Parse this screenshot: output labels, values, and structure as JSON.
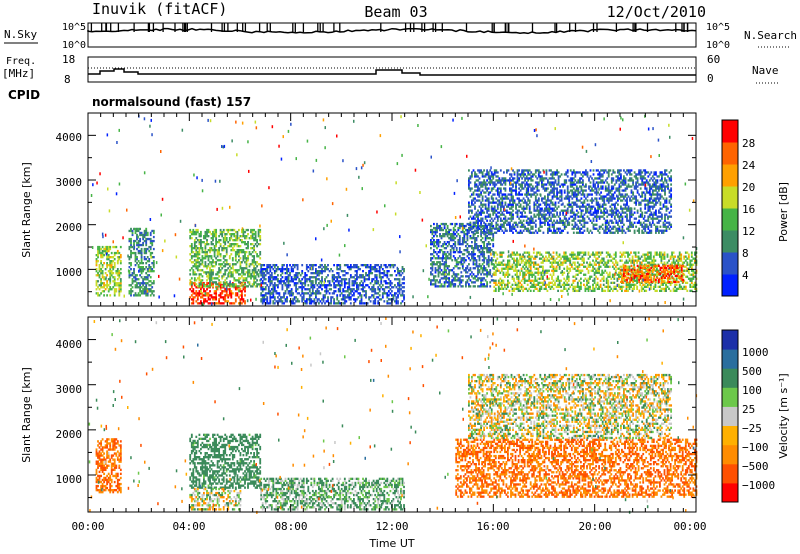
{
  "header": {
    "station": "Inuvik (fitACF)",
    "beam": "Beam 03",
    "date": "12/Oct/2010"
  },
  "nsky_panel": {
    "left_label": "N.Sky",
    "right_label": "N.Search",
    "left_ticks": [
      "10^5",
      "10^0"
    ],
    "right_ticks": [
      "10^5",
      "10^0"
    ]
  },
  "freq_panel": {
    "left_label_1": "Freq.",
    "left_label_2": "[MHz]",
    "right_label": "Nave",
    "left_ticks": [
      "18",
      "8"
    ],
    "right_ticks": [
      "60",
      "0"
    ],
    "cpid_label": "CPID",
    "cpid_value": "normalsound (fast) 157"
  },
  "x_axis": {
    "label": "Time UT",
    "ticks": [
      "00:00",
      "04:00",
      "08:00",
      "12:00",
      "16:00",
      "20:00",
      "00:00"
    ]
  },
  "power_panel": {
    "ylabel": "Slant Range [km]",
    "yticks": [
      "1000",
      "2000",
      "3000",
      "4000"
    ],
    "colorbar_label": "Power [dB]",
    "colorbar_ticks": [
      "4",
      "8",
      "12",
      "16",
      "20",
      "24",
      "28"
    ],
    "colors": [
      "#0020ff",
      "#2a52c8",
      "#3c8c64",
      "#46b446",
      "#c8dc28",
      "#ffa000",
      "#ff6400",
      "#ff0000"
    ]
  },
  "velocity_panel": {
    "ylabel": "Slant Range [km]",
    "yticks": [
      "1000",
      "2000",
      "3000",
      "4000"
    ],
    "colorbar_label": "Velocity [m s⁻¹]",
    "colorbar_ticks": [
      "1000",
      "500",
      "100",
      "25",
      "−25",
      "−100",
      "−500",
      "−1000"
    ],
    "colors": [
      "#1c2fa8",
      "#2a6e9e",
      "#3a8a5a",
      "#6cc84a",
      "#c8c8c8",
      "#ffb000",
      "#ff8c00",
      "#ff5000",
      "#ff0000"
    ]
  },
  "chart_data": {
    "type": "heatmap",
    "x_range": [
      "00:00",
      "24:00"
    ],
    "y_range_km": [
      180,
      4500
    ],
    "power_regions": [
      {
        "t0": 0.3,
        "t1": 1.3,
        "r0": 400,
        "r1": 1500,
        "dB": 18
      },
      {
        "t0": 1.6,
        "t1": 2.6,
        "r0": 400,
        "r1": 1900,
        "dB": 12
      },
      {
        "t0": 4.0,
        "t1": 6.2,
        "r0": 220,
        "r1": 700,
        "dB": 30
      },
      {
        "t0": 4.0,
        "t1": 6.8,
        "r0": 600,
        "r1": 1900,
        "dB": 16
      },
      {
        "t0": 6.8,
        "t1": 12.5,
        "r0": 220,
        "r1": 1100,
        "dB": 8
      },
      {
        "t0": 13.5,
        "t1": 16.0,
        "r0": 600,
        "r1": 2000,
        "dB": 10
      },
      {
        "t0": 16.0,
        "t1": 24.0,
        "r0": 500,
        "r1": 1400,
        "dB": 18
      },
      {
        "t0": 21.0,
        "t1": 23.5,
        "r0": 700,
        "r1": 1100,
        "dB": 28
      },
      {
        "t0": 15.0,
        "t1": 23.0,
        "r0": 1800,
        "r1": 3200,
        "dB": 9
      }
    ],
    "velocity_regions": [
      {
        "t0": 0.3,
        "t1": 1.3,
        "r0": 600,
        "r1": 1800,
        "v": -300
      },
      {
        "t0": 4.0,
        "t1": 6.8,
        "r0": 700,
        "r1": 1900,
        "v": 150
      },
      {
        "t0": 4.0,
        "t1": 6.0,
        "r0": 220,
        "r1": 700,
        "v": 0
      },
      {
        "t0": 6.8,
        "t1": 12.5,
        "r0": 220,
        "r1": 900,
        "v": 80
      },
      {
        "t0": 14.5,
        "t1": 24.0,
        "r0": 500,
        "r1": 1800,
        "v": -300
      },
      {
        "t0": 15.0,
        "t1": 23.0,
        "r0": 1800,
        "r1": 3200,
        "v": 0
      }
    ]
  }
}
